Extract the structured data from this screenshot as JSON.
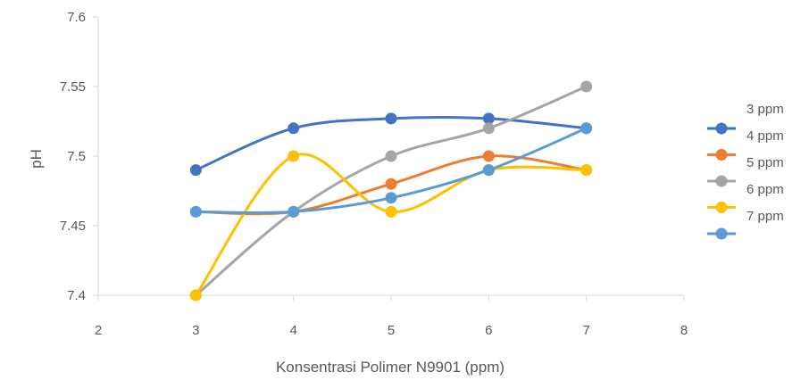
{
  "chart_data": {
    "type": "scatter",
    "title": "",
    "xlabel": "Konsentrasi Polimer N9901 (ppm)",
    "ylabel": "pH",
    "xlim": [
      2,
      8
    ],
    "ylim": [
      7.4,
      7.6
    ],
    "xticks": [
      "2",
      "3",
      "4",
      "5",
      "6",
      "7",
      "8"
    ],
    "yticks": [
      "7.4",
      "7.45",
      "7.5",
      "7.55",
      "7.6"
    ],
    "grid": false,
    "smooth": true,
    "legend": "right",
    "series": [
      {
        "name": "3 ppm",
        "color": "#4472C4",
        "x": [
          3,
          4,
          5,
          6,
          7
        ],
        "y": [
          7.49,
          7.52,
          7.527,
          7.527,
          7.52
        ]
      },
      {
        "name": "4 ppm",
        "color": "#ED7D31",
        "x": [
          3,
          4,
          5,
          6,
          7
        ],
        "y": [
          7.46,
          7.46,
          7.48,
          7.5,
          7.49
        ]
      },
      {
        "name": "5 ppm",
        "color": "#A5A5A5",
        "x": [
          3,
          4,
          5,
          6,
          7
        ],
        "y": [
          7.4,
          7.46,
          7.5,
          7.52,
          7.55
        ]
      },
      {
        "name": "6 ppm",
        "color": "#FFC000",
        "x": [
          3,
          4,
          5,
          6,
          7
        ],
        "y": [
          7.4,
          7.5,
          7.46,
          7.49,
          7.49
        ]
      },
      {
        "name": "7 ppm",
        "color": "#5B9BD5",
        "x": [
          3,
          4,
          5,
          6,
          7
        ],
        "y": [
          7.46,
          7.46,
          7.47,
          7.49,
          7.52
        ]
      }
    ]
  }
}
